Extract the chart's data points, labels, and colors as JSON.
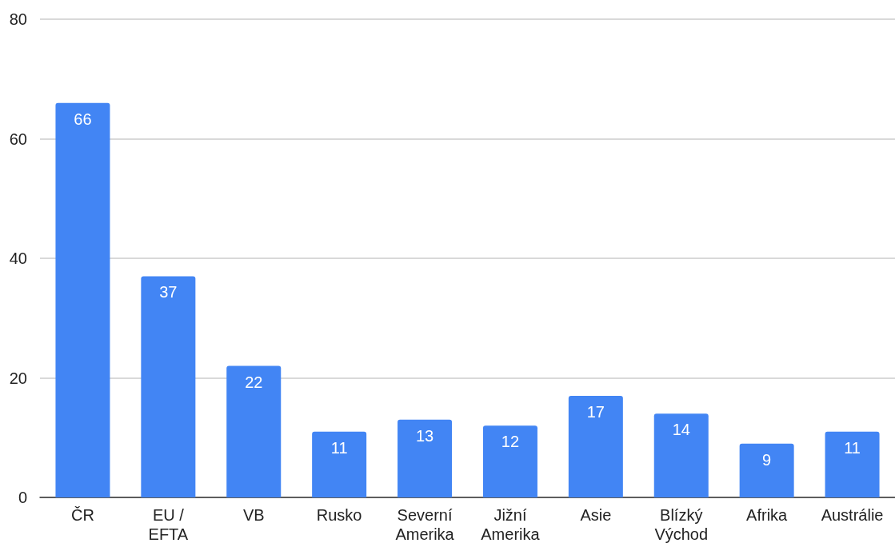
{
  "chart_data": {
    "type": "bar",
    "categories": [
      "ČR",
      "EU / EFTA",
      "VB",
      "Rusko",
      "Severní Amerika",
      "Jižní Amerika",
      "Asie",
      "Blízký Východ",
      "Afrika",
      "Austrálie"
    ],
    "values": [
      66,
      37,
      22,
      11,
      13,
      12,
      17,
      14,
      9,
      11
    ],
    "color": "#4285f4",
    "ylim": [
      0,
      80
    ],
    "yticks": [
      0,
      20,
      40,
      60,
      80
    ],
    "grid": "y",
    "data_labels": true
  }
}
